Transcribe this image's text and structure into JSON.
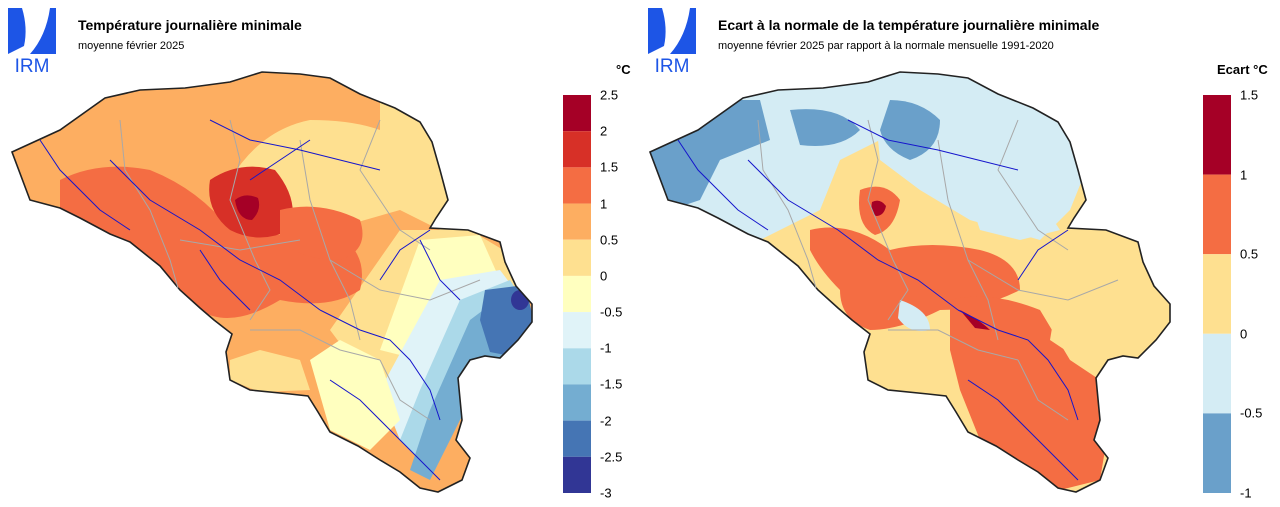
{
  "logo": {
    "text": "IRM",
    "color": "#1d55e6"
  },
  "panels": [
    {
      "title": "Température journalière minimale",
      "subtitle": "moyenne février 2025",
      "legend": {
        "unit": "°C",
        "ticks": [
          "2.5",
          "2",
          "1.5",
          "1",
          "0.5",
          "0",
          "-0.5",
          "-1",
          "-1.5",
          "-2",
          "-2.5",
          "-3"
        ],
        "colors": [
          "#a50026",
          "#d73027",
          "#f46d43",
          "#fdae61",
          "#fee090",
          "#ffffbf",
          "#e0f3f8",
          "#abd9e9",
          "#74add1",
          "#4575b4",
          "#313695"
        ]
      }
    },
    {
      "title": "Ecart à la normale de la température journalière minimale",
      "subtitle": "moyenne février 2025 par rapport à la normale mensuelle 1991-2020",
      "legend": {
        "unit": "Ecart °C",
        "ticks": [
          "1.5",
          "1",
          "0.5",
          "0",
          "-0.5",
          "-1"
        ],
        "colors": [
          "#a50026",
          "#f46d43",
          "#fee090",
          "#d4ecf4",
          "#6aa0ca"
        ]
      }
    }
  ]
}
